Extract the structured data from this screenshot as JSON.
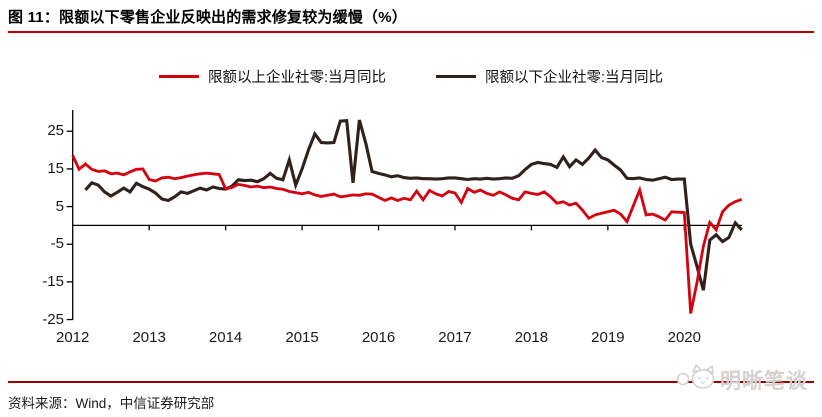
{
  "title": {
    "text": "图 11：限额以下零售企业反映出的需求修复较为缓慢（%）"
  },
  "source": {
    "text": "资料来源：Wind，中信证券研究部"
  },
  "watermark": {
    "text": "明晰笔谈",
    "icon": "cat-face"
  },
  "colors": {
    "series_red": "#d7000f",
    "series_black": "#31211c",
    "axis": "#000000",
    "title_rule_red": "#c00000",
    "footer_rule_red": "#9b0000",
    "watermark_gray": "#d5d1ce"
  },
  "chart_data": {
    "type": "line",
    "title": "图 11：限额以下零售企业反映出的需求修复较为缓慢（%）",
    "xlabel": "",
    "ylabel": "",
    "x_start": "2012-01",
    "x_end": "2020-10",
    "x_frequency": "monthly",
    "x_tick_labels": [
      "2012",
      "2013",
      "2014",
      "2015",
      "2016",
      "2017",
      "2018",
      "2019",
      "2020"
    ],
    "y_ticks": [
      25,
      15,
      5,
      -5,
      -15,
      -25
    ],
    "ylim": [
      -25,
      30.5
    ],
    "grid": false,
    "legend_position": "top-center",
    "series": [
      {
        "name": "限额以上企业社零:当月同比",
        "color": "#d7000f",
        "values": [
          18.6,
          14.9,
          16.3,
          14.9,
          14.3,
          14.5,
          13.7,
          13.9,
          13.4,
          14.2,
          14.9,
          15.0,
          12.2,
          11.8,
          12.6,
          12.8,
          12.4,
          12.7,
          13.1,
          13.4,
          13.7,
          13.9,
          13.7,
          13.5,
          9.7,
          10.1,
          10.9,
          10.6,
          10.2,
          10.4,
          10.0,
          10.2,
          9.8,
          9.6,
          9.0,
          8.7,
          8.4,
          8.8,
          8.1,
          7.7,
          8.0,
          8.3,
          7.6,
          7.8,
          8.1,
          8.0,
          8.4,
          8.3,
          7.5,
          6.6,
          7.3,
          6.6,
          7.2,
          6.8,
          9.1,
          6.8,
          9.3,
          8.4,
          7.8,
          9.0,
          8.6,
          6.1,
          9.8,
          8.8,
          9.4,
          8.5,
          8.0,
          8.9,
          8.1,
          7.2,
          6.8,
          8.9,
          8.5,
          8.2,
          8.9,
          7.6,
          5.9,
          6.3,
          5.4,
          5.9,
          4.1,
          1.9,
          2.8,
          3.2,
          3.6,
          4.0,
          3.0,
          1.0,
          5.2,
          9.4,
          2.8,
          3.0,
          2.3,
          1.4,
          3.6,
          3.5,
          3.4,
          -23.4,
          -15.0,
          -5.5,
          0.8,
          -1.2,
          3.6,
          5.4,
          6.3,
          6.9
        ]
      },
      {
        "name": "限额以下企业社零:当月同比",
        "color": "#31211c",
        "values": [
          null,
          null,
          9.4,
          11.3,
          10.7,
          8.9,
          7.8,
          8.8,
          9.9,
          8.9,
          11.2,
          10.3,
          9.6,
          8.6,
          7.0,
          6.6,
          7.6,
          8.9,
          8.5,
          9.2,
          9.9,
          9.4,
          10.2,
          9.8,
          9.6,
          10.4,
          12.1,
          11.9,
          12.0,
          11.6,
          12.4,
          13.8,
          12.5,
          12.1,
          17.4,
          10.7,
          15.0,
          20.0,
          24.3,
          22.0,
          21.9,
          22.0,
          27.7,
          27.8,
          11.3,
          28.0,
          21.8,
          14.3,
          13.8,
          13.4,
          12.9,
          13.2,
          12.7,
          12.5,
          12.6,
          12.4,
          12.4,
          12.3,
          12.4,
          12.6,
          12.6,
          12.4,
          12.2,
          12.4,
          12.3,
          12.5,
          12.3,
          12.4,
          12.6,
          12.5,
          13.2,
          14.8,
          16.2,
          16.7,
          16.4,
          16.2,
          15.4,
          18.2,
          15.6,
          17.4,
          16.2,
          17.9,
          20.0,
          18.0,
          17.4,
          16.0,
          14.7,
          12.5,
          12.4,
          12.6,
          12.2,
          12.0,
          12.4,
          12.8,
          12.2,
          12.3,
          12.3,
          -5.0,
          -11.0,
          -17.2,
          -3.9,
          -2.5,
          -4.3,
          -3.2,
          0.7,
          -1.2
        ]
      }
    ]
  }
}
